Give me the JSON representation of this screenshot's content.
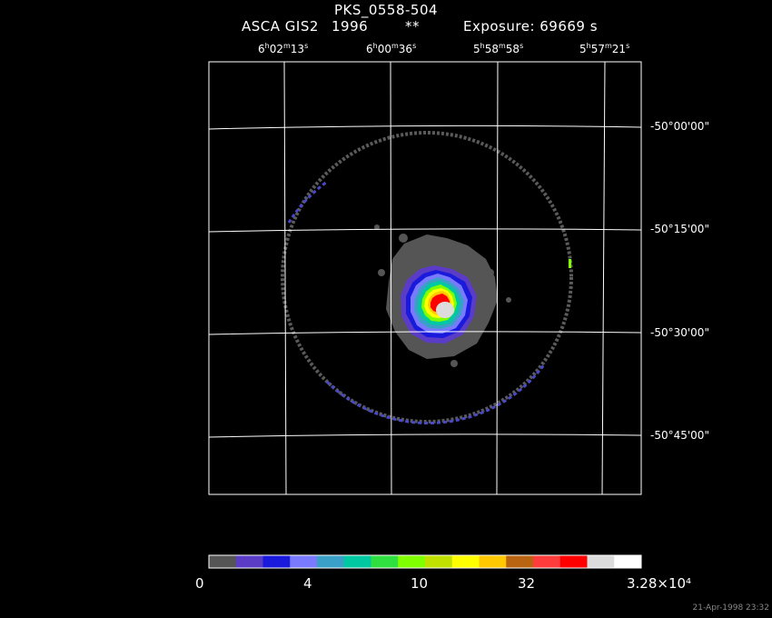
{
  "title": "PKS_0558-504",
  "subtitle": {
    "instrument": "ASCA GIS2",
    "year": "1996",
    "mark": "**",
    "exposure": "Exposure: 69669 s"
  },
  "ra_labels": [
    {
      "h": "6",
      "m": "02",
      "s": "13"
    },
    {
      "h": "6",
      "m": "00",
      "s": "36"
    },
    {
      "h": "5",
      "m": "58",
      "s": "58"
    },
    {
      "h": "5",
      "m": "57",
      "s": "21"
    }
  ],
  "dec_labels": [
    "-50°00'00\"",
    "-50°15'00\"",
    "-50°30'00\"",
    "-50°45'00\""
  ],
  "colorbar": {
    "colors": [
      "#555555",
      "#5a3cc6",
      "#1a1adc",
      "#7a7aff",
      "#3aa0c8",
      "#00c8a0",
      "#30e040",
      "#80ff00",
      "#c0e000",
      "#ffff00",
      "#ffc800",
      "#b86410",
      "#ff3c3c",
      "#ff0000",
      "#dcdcdc",
      "#ffffff"
    ],
    "tick_labels": [
      "0",
      "4",
      "10",
      "32",
      "3.28×10⁴"
    ]
  },
  "stamp": "21-Apr-1998 23:32"
}
